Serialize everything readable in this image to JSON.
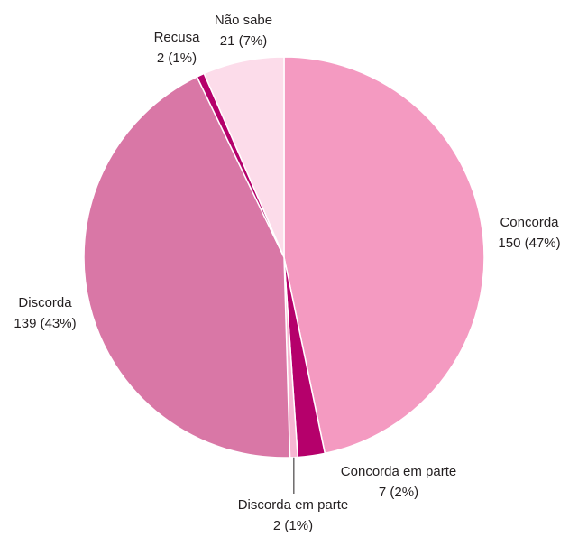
{
  "chart_data": {
    "type": "pie",
    "title": "",
    "categories": [
      "Concorda",
      "Concorda em parte",
      "Discorda em parte",
      "Discorda",
      "Recusa",
      "Não sabe"
    ],
    "values": [
      150,
      7,
      2,
      139,
      2,
      21
    ],
    "labels": [
      {
        "name": "Concorda",
        "value": "150 (47%)"
      },
      {
        "name": "Concorda em parte",
        "value": "7 (2%)"
      },
      {
        "name": "Discorda em parte",
        "value": "2 (1%)"
      },
      {
        "name": "Discorda",
        "value": "139 (43%)"
      },
      {
        "name": "Recusa",
        "value": "2 (1%)"
      },
      {
        "name": "Não sabe",
        "value": "21 (7%)"
      }
    ],
    "colors": [
      "#f49ac1",
      "#b5006b",
      "#f7b6d2",
      "#d977a6",
      "#b5006b",
      "#fcdcea"
    ],
    "start": "12 o'clock",
    "direction": "clockwise"
  }
}
